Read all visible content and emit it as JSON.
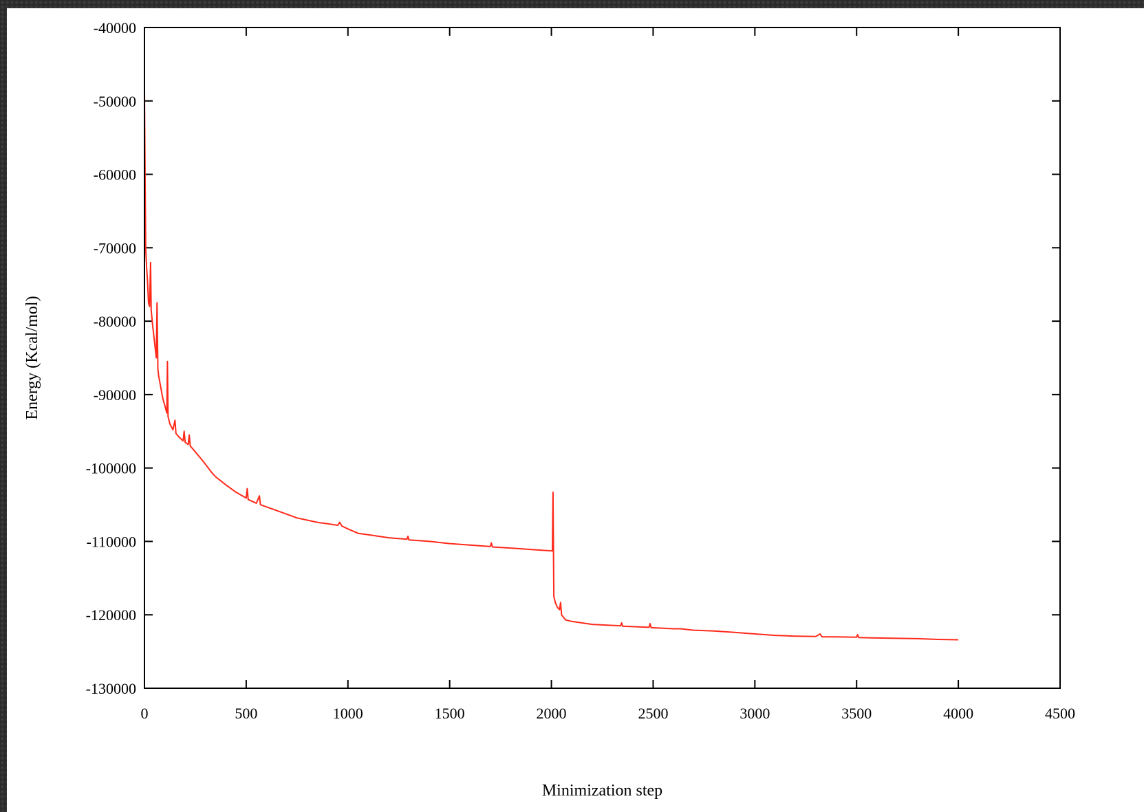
{
  "chart_data": {
    "type": "line",
    "title": "",
    "xlabel": "Minimization step",
    "ylabel": "Energy (Kcal/mol)",
    "xlim": [
      0,
      4500
    ],
    "ylim": [
      -130000,
      -40000
    ],
    "xticks": [
      0,
      500,
      1000,
      1500,
      2000,
      2500,
      3000,
      3500,
      4000,
      4500
    ],
    "yticks": [
      -130000,
      -120000,
      -110000,
      -100000,
      -90000,
      -80000,
      -70000,
      -60000,
      -50000,
      -40000
    ],
    "xtick_labels": [
      "0",
      "500",
      "1000",
      "1500",
      "2000",
      "2500",
      "3000",
      "3500",
      "4000",
      "4500"
    ],
    "ytick_labels": [
      "-130000",
      "-120000",
      "-110000",
      "-100000",
      "-90000",
      "-80000",
      "-70000",
      "-60000",
      "-50000",
      "-40000"
    ],
    "grid": false,
    "legend": "none",
    "series": [
      {
        "color": "#ff2a1a",
        "points": [
          [
            0,
            -48500
          ],
          [
            3,
            -60000
          ],
          [
            6,
            -70000
          ],
          [
            10,
            -72500
          ],
          [
            15,
            -74500
          ],
          [
            20,
            -77500
          ],
          [
            25,
            -78000
          ],
          [
            30,
            -72000
          ],
          [
            33,
            -78500
          ],
          [
            40,
            -80500
          ],
          [
            50,
            -83000
          ],
          [
            58,
            -85000
          ],
          [
            62,
            -77500
          ],
          [
            66,
            -86500
          ],
          [
            70,
            -87500
          ],
          [
            80,
            -89000
          ],
          [
            90,
            -90500
          ],
          [
            100,
            -91500
          ],
          [
            110,
            -92500
          ],
          [
            113,
            -85500
          ],
          [
            116,
            -93000
          ],
          [
            125,
            -94000
          ],
          [
            140,
            -94800
          ],
          [
            150,
            -93500
          ],
          [
            155,
            -95300
          ],
          [
            170,
            -95800
          ],
          [
            190,
            -96300
          ],
          [
            195,
            -95000
          ],
          [
            200,
            -96500
          ],
          [
            215,
            -96800
          ],
          [
            220,
            -95500
          ],
          [
            225,
            -97000
          ],
          [
            250,
            -97800
          ],
          [
            280,
            -98800
          ],
          [
            300,
            -99500
          ],
          [
            330,
            -100600
          ],
          [
            350,
            -101200
          ],
          [
            400,
            -102300
          ],
          [
            450,
            -103300
          ],
          [
            500,
            -104100
          ],
          [
            505,
            -102800
          ],
          [
            510,
            -104300
          ],
          [
            550,
            -104800
          ],
          [
            565,
            -103800
          ],
          [
            570,
            -105000
          ],
          [
            600,
            -105300
          ],
          [
            650,
            -105800
          ],
          [
            700,
            -106300
          ],
          [
            750,
            -106800
          ],
          [
            800,
            -107100
          ],
          [
            850,
            -107400
          ],
          [
            900,
            -107600
          ],
          [
            950,
            -107800
          ],
          [
            960,
            -107400
          ],
          [
            970,
            -107900
          ],
          [
            1000,
            -108300
          ],
          [
            1050,
            -108900
          ],
          [
            1100,
            -109100
          ],
          [
            1200,
            -109500
          ],
          [
            1290,
            -109700
          ],
          [
            1295,
            -109300
          ],
          [
            1300,
            -109800
          ],
          [
            1400,
            -110000
          ],
          [
            1500,
            -110300
          ],
          [
            1600,
            -110500
          ],
          [
            1700,
            -110700
          ],
          [
            1705,
            -110200
          ],
          [
            1710,
            -110750
          ],
          [
            1800,
            -110900
          ],
          [
            1900,
            -111100
          ],
          [
            2005,
            -111300
          ],
          [
            2008,
            -103300
          ],
          [
            2012,
            -117500
          ],
          [
            2020,
            -118400
          ],
          [
            2030,
            -119000
          ],
          [
            2040,
            -119300
          ],
          [
            2045,
            -118300
          ],
          [
            2050,
            -120000
          ],
          [
            2070,
            -120700
          ],
          [
            2100,
            -120900
          ],
          [
            2200,
            -121300
          ],
          [
            2340,
            -121500
          ],
          [
            2345,
            -121100
          ],
          [
            2350,
            -121550
          ],
          [
            2480,
            -121700
          ],
          [
            2485,
            -121200
          ],
          [
            2490,
            -121750
          ],
          [
            2600,
            -121900
          ],
          [
            2635,
            -121900
          ],
          [
            2700,
            -122100
          ],
          [
            2800,
            -122200
          ],
          [
            2900,
            -122400
          ],
          [
            3000,
            -122600
          ],
          [
            3100,
            -122800
          ],
          [
            3200,
            -122900
          ],
          [
            3300,
            -122950
          ],
          [
            3320,
            -122600
          ],
          [
            3330,
            -123000
          ],
          [
            3400,
            -123000
          ],
          [
            3500,
            -123050
          ],
          [
            3505,
            -122700
          ],
          [
            3510,
            -123100
          ],
          [
            3600,
            -123150
          ],
          [
            3700,
            -123200
          ],
          [
            3800,
            -123250
          ],
          [
            3900,
            -123350
          ],
          [
            4000,
            -123400
          ]
        ]
      }
    ]
  }
}
